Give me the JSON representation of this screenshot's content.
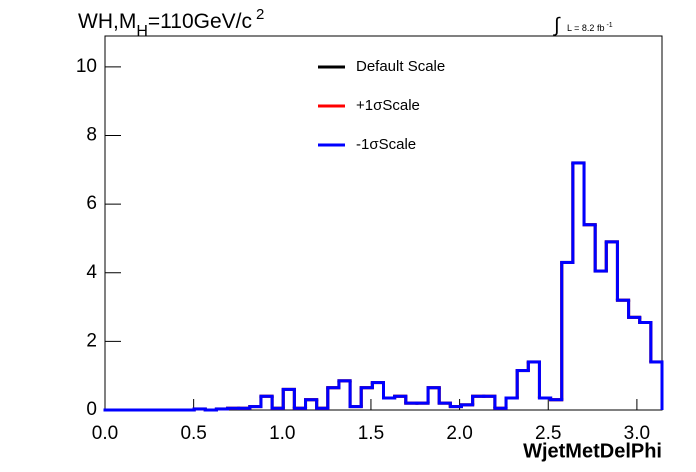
{
  "chart_data": {
    "type": "histogram",
    "title": {
      "text": "WH,M",
      "sub": "H",
      "rest": "=110GeV/c",
      "sup": "2"
    },
    "luminosity": {
      "text": "L = 8.2 fb",
      "sup": "-1"
    },
    "x_label": "WjetMetDelPhi",
    "bins": [
      0,
      0.0628,
      0.1257,
      0.1885,
      0.2513,
      0.3142,
      0.377,
      0.4398,
      0.5027,
      0.5655,
      0.6283,
      0.6912,
      0.754,
      0.8168,
      0.8796,
      0.9425,
      1.0053,
      1.0681,
      1.131,
      1.1938,
      1.2566,
      1.3195,
      1.3823,
      1.4451,
      1.508,
      1.5708,
      1.6336,
      1.6965,
      1.7593,
      1.8221,
      1.885,
      1.9478,
      2.0106,
      2.0735,
      2.1363,
      2.1991,
      2.2619,
      2.3248,
      2.3876,
      2.4504,
      2.5133,
      2.5761,
      2.6389,
      2.7018,
      2.7646,
      2.8274,
      2.8903,
      2.9531,
      3.0159,
      3.0788,
      3.1416
    ],
    "series": [
      {
        "name": "Default Scale",
        "color": "#000000",
        "values": [
          0,
          0,
          0,
          0,
          0,
          0,
          0,
          0,
          0.03,
          0,
          0.03,
          0.05,
          0.05,
          0.1,
          0.4,
          0.05,
          0.6,
          0.05,
          0.3,
          0.05,
          0.65,
          0.85,
          0.1,
          0.65,
          0.8,
          0.35,
          0.4,
          0.2,
          0.2,
          0.65,
          0.2,
          0.1,
          0.15,
          0.4,
          0.4,
          0.05,
          0.35,
          1.15,
          1.4,
          0.35,
          0.3,
          4.3,
          7.2,
          5.4,
          4.05,
          4.9,
          3.2,
          2.7,
          2.55,
          1.4
        ]
      },
      {
        "name": "+1σScale",
        "color": "#ff0000",
        "values": [
          0,
          0,
          0,
          0,
          0,
          0,
          0,
          0,
          0.03,
          0,
          0.03,
          0.05,
          0.05,
          0.1,
          0.4,
          0.05,
          0.6,
          0.05,
          0.3,
          0.05,
          0.65,
          0.85,
          0.1,
          0.65,
          0.8,
          0.35,
          0.4,
          0.2,
          0.2,
          0.65,
          0.2,
          0.1,
          0.15,
          0.4,
          0.4,
          0.05,
          0.35,
          1.15,
          1.4,
          0.35,
          0.3,
          4.3,
          7.2,
          5.4,
          4.05,
          4.9,
          3.2,
          2.7,
          2.55,
          1.4
        ]
      },
      {
        "name": "-1σScale",
        "color": "#0000ff",
        "values": [
          0,
          0,
          0,
          0,
          0,
          0,
          0,
          0,
          0.03,
          0,
          0.03,
          0.05,
          0.05,
          0.1,
          0.4,
          0.05,
          0.6,
          0.05,
          0.3,
          0.05,
          0.65,
          0.85,
          0.1,
          0.65,
          0.8,
          0.35,
          0.4,
          0.2,
          0.2,
          0.65,
          0.2,
          0.1,
          0.15,
          0.4,
          0.4,
          0.05,
          0.35,
          1.15,
          1.4,
          0.35,
          0.3,
          4.3,
          7.2,
          5.4,
          4.05,
          4.9,
          3.2,
          2.7,
          2.55,
          1.4
        ]
      }
    ],
    "xlim": [
      0,
      3.1416
    ],
    "ylim": [
      0,
      10.9
    ],
    "xticks": [
      {
        "value": 0,
        "label": "0.0"
      },
      0.5,
      {
        "value": 1,
        "label": "1.0"
      },
      1.5,
      {
        "value": 2,
        "label": "2.0"
      },
      2.5,
      {
        "value": 3,
        "label": "3.0"
      }
    ],
    "yticks": [
      0,
      2,
      4,
      6,
      8,
      10
    ]
  }
}
